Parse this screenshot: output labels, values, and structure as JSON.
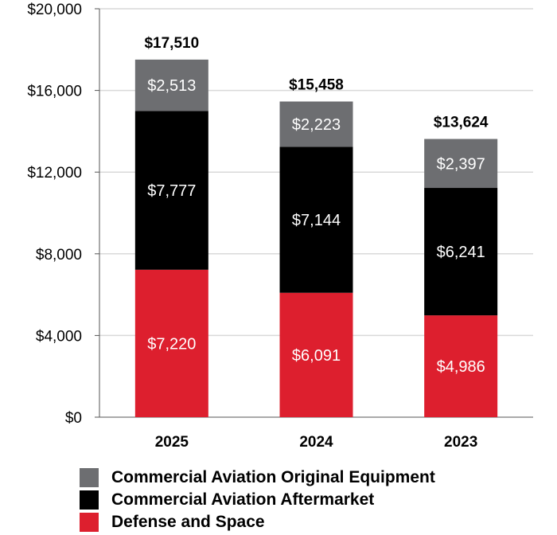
{
  "chart_data": {
    "type": "bar",
    "stacked": true,
    "categories": [
      "2025",
      "2024",
      "2023"
    ],
    "series": [
      {
        "name": "Defense and Space",
        "color": "#dd1f2e",
        "values": [
          7220,
          6091,
          4986
        ],
        "labels": [
          "$7,220",
          "$6,091",
          "$4,986"
        ]
      },
      {
        "name": "Commercial Aviation Aftermarket",
        "color": "#000000",
        "values": [
          7777,
          7144,
          6241
        ],
        "labels": [
          "$7,777",
          "$7,144",
          "$6,241"
        ]
      },
      {
        "name": "Commercial Aviation Original Equipment",
        "color": "#6d6e71",
        "values": [
          2513,
          2223,
          2397
        ],
        "labels": [
          "$2,513",
          "$2,223",
          "$2,397"
        ]
      }
    ],
    "totals": [
      17510,
      15458,
      13624
    ],
    "total_labels": [
      "$17,510",
      "$15,458",
      "$13,624"
    ],
    "ylim": [
      0,
      20000
    ],
    "yticks": [
      0,
      4000,
      8000,
      12000,
      16000,
      20000
    ],
    "ytick_labels": [
      "$0",
      "$4,000",
      "$8,000",
      "$12,000",
      "$16,000",
      "$20,000"
    ],
    "gridlines": true,
    "legend_position": "bottom"
  },
  "legend": [
    {
      "label": "Commercial Aviation Original Equipment",
      "color": "#6d6e71"
    },
    {
      "label": "Commercial Aviation Aftermarket",
      "color": "#000000"
    },
    {
      "label": "Defense and Space",
      "color": "#dd1f2e"
    }
  ]
}
